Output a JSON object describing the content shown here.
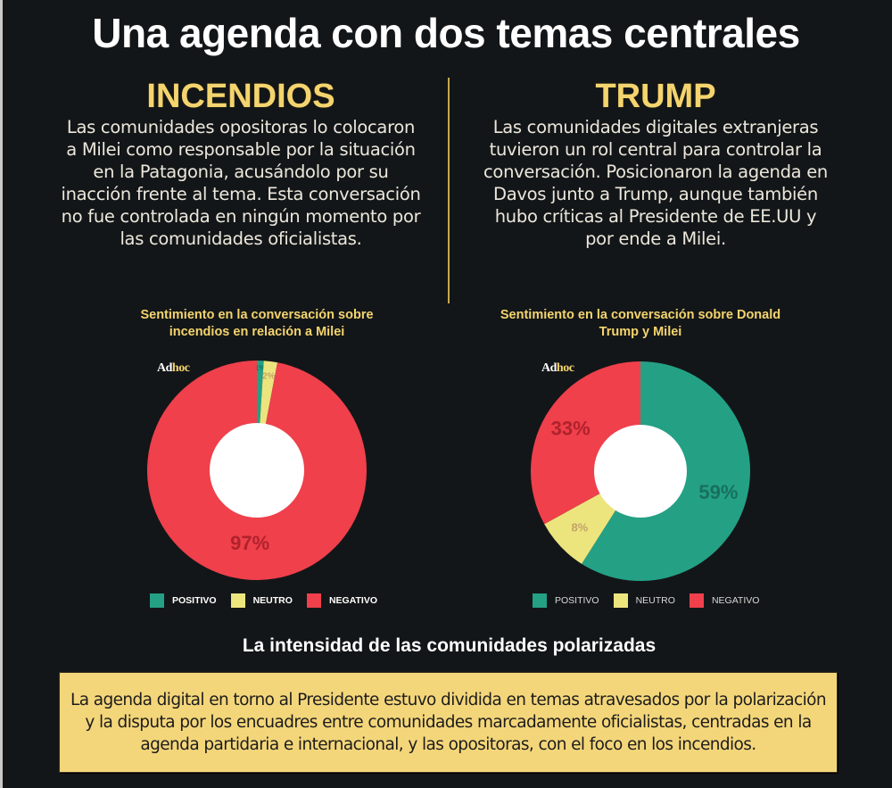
{
  "title": "Una agenda con dos temas centrales",
  "sections": [
    {
      "heading": "INCENDIOS",
      "text": "Las comunidades opositoras lo colocaron a Milei como responsable por la situación en la Patagonia, acusándolo por su inacción frente al tema. Esta conversación no fue controlada en ningún momento por las comunidades oficialistas."
    },
    {
      "heading": "TRUMP",
      "text": "Las comunidades digitales extranjeras tuvieron un rol central para controlar la conversación. Posicionaron la agenda en Davos junto a Trump, aunque también hubo críticas al Presidente de EE.UU y por ende a Milei."
    }
  ],
  "logo": {
    "part1": "Ad",
    "part2": "hoc"
  },
  "colors": {
    "positivo": "#24a085",
    "neutro": "#ece57e",
    "negativo": "#ef404b",
    "accent": "#f4d46e"
  },
  "chart_data": [
    {
      "type": "pie",
      "title": "Sentimiento en la conversación sobre incendios en relación a Milei",
      "categories": [
        "POSITIVO",
        "NEUTRO",
        "NEGATIVO"
      ],
      "values": [
        1,
        2,
        97
      ],
      "labels": [
        "1%",
        "2%",
        "97%"
      ],
      "donut": true,
      "legend": "bottom"
    },
    {
      "type": "pie",
      "title": "Sentimiento en la conversación sobre Donald Trump y Milei",
      "categories": [
        "POSITIVO",
        "NEUTRO",
        "NEGATIVO"
      ],
      "values": [
        59,
        8,
        33
      ],
      "labels": [
        "59%",
        "8%",
        "33%"
      ],
      "donut": true,
      "legend": "bottom"
    }
  ],
  "bottom": {
    "heading": "La intensidad de las comunidades polarizadas",
    "text": "La agenda digital en torno al Presidente estuvo dividida en temas atravesados por la polarización y la disputa por los encuadres entre comunidades marcadamente oficialistas, centradas en la agenda partidaria e internacional, y las opositoras, con el foco en los incendios."
  }
}
